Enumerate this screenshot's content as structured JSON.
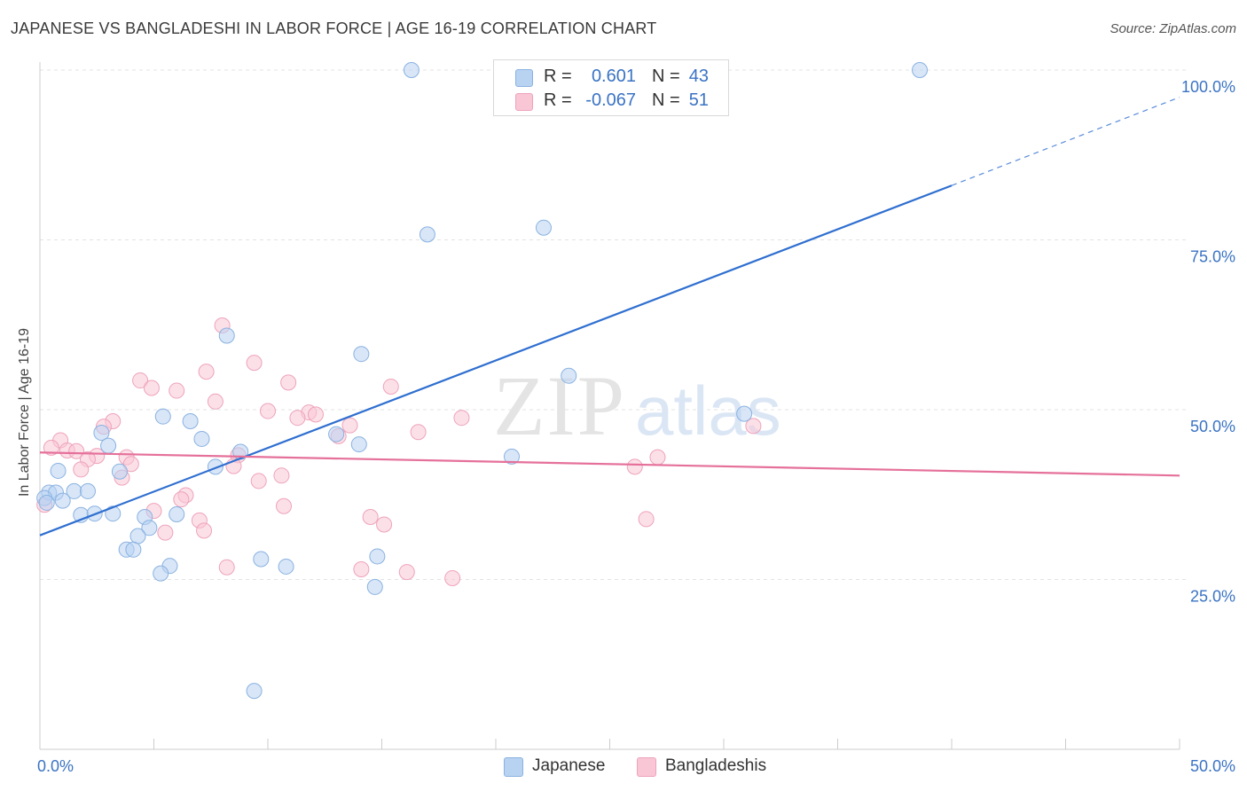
{
  "title": "JAPANESE VS BANGLADESHI IN LABOR FORCE | AGE 16-19 CORRELATION CHART",
  "source": "Source: ZipAtlas.com",
  "watermark": {
    "zip": "ZIP",
    "atlas": "atlas"
  },
  "legend_top": [
    {
      "r_label": "R =",
      "r_value": "0.601",
      "n_label": "N =",
      "n_value": "43"
    },
    {
      "r_label": "R =",
      "r_value": "-0.067",
      "n_label": "N =",
      "n_value": "51"
    }
  ],
  "legend_bottom": [
    {
      "label": "Japanese"
    },
    {
      "label": "Bangladeshis"
    }
  ],
  "colors": {
    "japanese_fill": "#b8d2f2",
    "japanese_stroke": "#8ab2e0",
    "japanese_line": "#2f6fd0",
    "bangladeshi_fill": "#f9c6d6",
    "bangladeshi_stroke": "#eea3bb",
    "bangladeshi_line": "#e5709a",
    "tick_label": "#3a73c4"
  },
  "chart_data": {
    "type": "scatter",
    "title": "JAPANESE VS BANGLADESHI IN LABOR FORCE | AGE 16-19 CORRELATION CHART",
    "xlabel": "",
    "ylabel": "In Labor Force | Age 16-19",
    "xlim": [
      0,
      50
    ],
    "ylim": [
      0,
      105
    ],
    "x_tick_labels": [
      {
        "value": 0,
        "label": "0.0%"
      },
      {
        "value": 50,
        "label": "50.0%"
      }
    ],
    "y_tick_labels": [
      {
        "value": 25,
        "label": "25.0%"
      },
      {
        "value": 50,
        "label": "50.0%"
      },
      {
        "value": 75,
        "label": "75.0%"
      },
      {
        "value": 100,
        "label": "100.0%"
      }
    ],
    "grid": "horizontal dashed",
    "legend_position": "top-center and bottom-center",
    "series": [
      {
        "name": "Japanese",
        "R": 0.601,
        "N": 43,
        "trend": {
          "x0": 0,
          "y0": 31.5,
          "x1": 40,
          "y1": 83,
          "dashed_to_x": 50,
          "dashed_to_y": 96
        },
        "points": [
          [
            16.3,
            100
          ],
          [
            38.6,
            100
          ],
          [
            17.0,
            75.8
          ],
          [
            22.1,
            76.8
          ],
          [
            8.2,
            60.9
          ],
          [
            14.1,
            58.2
          ],
          [
            23.2,
            55.0
          ],
          [
            5.4,
            49.0
          ],
          [
            6.6,
            48.3
          ],
          [
            30.9,
            49.4
          ],
          [
            2.7,
            46.6
          ],
          [
            7.1,
            45.7
          ],
          [
            3.0,
            44.7
          ],
          [
            13.0,
            46.4
          ],
          [
            14.0,
            44.9
          ],
          [
            8.8,
            43.8
          ],
          [
            0.8,
            41.0
          ],
          [
            3.5,
            40.9
          ],
          [
            7.7,
            41.6
          ],
          [
            0.4,
            37.8
          ],
          [
            0.7,
            37.8
          ],
          [
            1.5,
            38.0
          ],
          [
            2.1,
            38.0
          ],
          [
            1.0,
            36.6
          ],
          [
            0.2,
            37.0
          ],
          [
            0.3,
            36.3
          ],
          [
            1.8,
            34.5
          ],
          [
            2.4,
            34.7
          ],
          [
            3.2,
            34.7
          ],
          [
            4.6,
            34.2
          ],
          [
            6.0,
            34.6
          ],
          [
            4.8,
            32.6
          ],
          [
            4.3,
            31.4
          ],
          [
            3.8,
            29.4
          ],
          [
            4.1,
            29.4
          ],
          [
            14.8,
            28.4
          ],
          [
            9.7,
            28.0
          ],
          [
            10.8,
            26.9
          ],
          [
            5.7,
            27.0
          ],
          [
            5.3,
            25.9
          ],
          [
            14.7,
            23.9
          ],
          [
            9.4,
            8.6
          ],
          [
            20.7,
            43.1
          ]
        ]
      },
      {
        "name": "Bangladeshis",
        "R": -0.067,
        "N": 51,
        "trend": {
          "x0": 0,
          "y0": 43.7,
          "x1": 50,
          "y1": 40.3
        },
        "points": [
          [
            8.0,
            62.4
          ],
          [
            9.4,
            56.9
          ],
          [
            7.3,
            55.6
          ],
          [
            4.4,
            54.3
          ],
          [
            4.9,
            53.2
          ],
          [
            10.9,
            54.0
          ],
          [
            6.0,
            52.8
          ],
          [
            7.7,
            51.2
          ],
          [
            15.4,
            53.4
          ],
          [
            10.0,
            49.8
          ],
          [
            11.8,
            49.6
          ],
          [
            11.3,
            48.8
          ],
          [
            12.1,
            49.3
          ],
          [
            18.5,
            48.8
          ],
          [
            31.3,
            47.6
          ],
          [
            3.2,
            48.3
          ],
          [
            2.8,
            47.5
          ],
          [
            0.9,
            45.5
          ],
          [
            13.6,
            47.7
          ],
          [
            16.6,
            46.7
          ],
          [
            13.1,
            46.1
          ],
          [
            0.5,
            44.4
          ],
          [
            1.2,
            44.0
          ],
          [
            1.6,
            43.9
          ],
          [
            2.5,
            43.2
          ],
          [
            2.1,
            42.7
          ],
          [
            3.8,
            43.0
          ],
          [
            4.0,
            42.0
          ],
          [
            8.7,
            43.3
          ],
          [
            8.5,
            41.7
          ],
          [
            1.8,
            41.2
          ],
          [
            3.6,
            40.0
          ],
          [
            10.6,
            40.3
          ],
          [
            9.6,
            39.5
          ],
          [
            6.4,
            37.4
          ],
          [
            6.2,
            36.8
          ],
          [
            10.7,
            35.8
          ],
          [
            5.0,
            35.1
          ],
          [
            14.5,
            34.2
          ],
          [
            7.0,
            33.7
          ],
          [
            15.1,
            33.1
          ],
          [
            7.2,
            32.2
          ],
          [
            5.5,
            31.9
          ],
          [
            26.1,
            41.6
          ],
          [
            27.1,
            43.0
          ],
          [
            26.6,
            33.9
          ],
          [
            0.2,
            36.0
          ],
          [
            8.2,
            26.8
          ],
          [
            14.1,
            26.5
          ],
          [
            16.1,
            26.1
          ],
          [
            18.1,
            25.2
          ]
        ]
      }
    ]
  }
}
